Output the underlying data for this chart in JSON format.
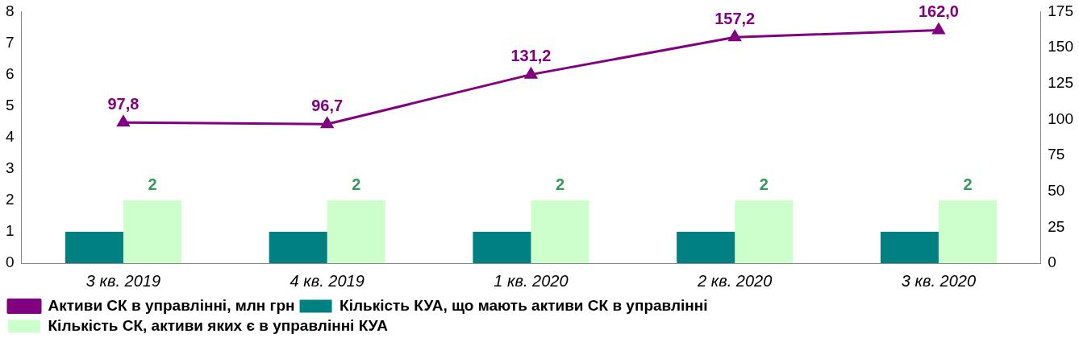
{
  "chart_data": {
    "type": "bar",
    "categories": [
      "3 кв. 2019",
      "4 кв. 2019",
      "1 кв. 2020",
      "2 кв. 2020",
      "3 кв. 2020"
    ],
    "series": [
      {
        "name": "Кількість КУА, що мають активи СК в управлінні",
        "color": "#008080",
        "values": [
          1,
          1,
          1,
          1,
          1
        ]
      },
      {
        "name": "Кількість СК, активи яких є в управлінні КУА",
        "color": "#ccffcc",
        "values": [
          2,
          2,
          2,
          2,
          2
        ],
        "value_labels": [
          "2",
          "2",
          "2",
          "2",
          "2"
        ]
      },
      {
        "name": "Активи СК в управлінні, млн грн",
        "type": "line",
        "axis": "y2",
        "color": "#800080",
        "values": [
          97.8,
          96.7,
          131.2,
          157.2,
          162.0
        ],
        "value_labels": [
          "97,8",
          "96,7",
          "131,2",
          "157,2",
          "162,0"
        ]
      }
    ],
    "ylim": [
      0,
      8
    ],
    "yticks": [
      0,
      1,
      2,
      3,
      4,
      5,
      6,
      7,
      8
    ],
    "y2lim": [
      0,
      175
    ],
    "y2ticks": [
      0,
      25,
      50,
      75,
      100,
      125,
      150,
      175
    ],
    "grid": false,
    "legend": "bottom",
    "marker": "triangle",
    "line_style": "solid"
  }
}
